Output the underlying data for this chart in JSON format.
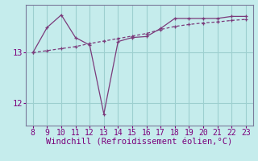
{
  "line1_x": [
    8,
    9,
    10,
    11,
    12,
    13,
    14,
    15,
    16,
    17,
    18,
    19,
    20,
    21,
    22,
    23
  ],
  "line1_y": [
    13.0,
    13.5,
    13.75,
    13.3,
    13.15,
    11.78,
    13.22,
    13.3,
    13.32,
    13.48,
    13.68,
    13.68,
    13.68,
    13.68,
    13.72,
    13.72
  ],
  "line2_x": [
    8,
    9,
    10,
    11,
    12,
    13,
    14,
    15,
    16,
    17,
    18,
    19,
    20,
    21,
    22,
    23
  ],
  "line2_y": [
    13.0,
    13.04,
    13.08,
    13.12,
    13.18,
    13.23,
    13.28,
    13.33,
    13.38,
    13.46,
    13.52,
    13.56,
    13.59,
    13.61,
    13.64,
    13.66
  ],
  "line_color": "#7b3b7b",
  "bg_color": "#c5ecec",
  "grid_color": "#9dcfcf",
  "spine_color": "#7b7b9b",
  "xlabel": "Windchill (Refroidissement éolien,°C)",
  "xlim": [
    7.5,
    23.5
  ],
  "ylim": [
    11.55,
    13.95
  ],
  "yticks": [
    12,
    13
  ],
  "xticks": [
    8,
    9,
    10,
    11,
    12,
    13,
    14,
    15,
    16,
    17,
    18,
    19,
    20,
    21,
    22,
    23
  ],
  "xlabel_color": "#7b007b",
  "tick_color": "#7b007b",
  "tick_fontsize": 7,
  "xlabel_fontsize": 7.5
}
